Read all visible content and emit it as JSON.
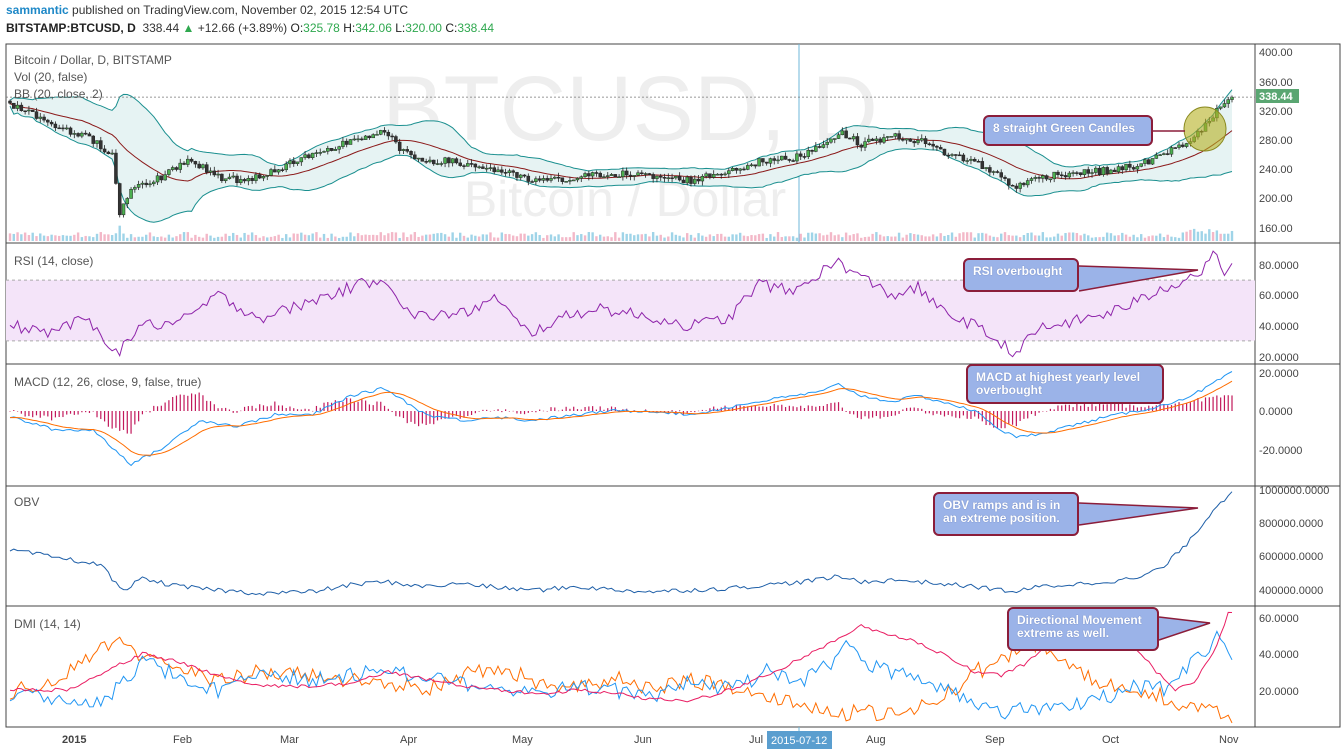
{
  "header": {
    "author": "sammantic",
    "published": " published on TradingView.com, November 02, 2015 12:54 UTC",
    "symbol": "BITSTAMP:BTCUSD, D",
    "last": "338.44",
    "change": "+12.66 (+3.89%)",
    "open_label": "O:",
    "open": "325.78",
    "high_label": "H:",
    "high": "342.06",
    "low_label": "L:",
    "low": "320.00",
    "close_label": "C:",
    "close": "338.44"
  },
  "watermark": {
    "line1": "BTCUSD, D",
    "line2": "Bitcoin / Dollar"
  },
  "colors": {
    "up": "#4caf50",
    "down": "#333333",
    "bb": "#1a8f8f",
    "basis": "#8b1a1a",
    "rsi": "#8e24aa",
    "macd": "#2196f3",
    "signal": "#ff6d00",
    "hist": "#c2185b",
    "obv": "#1e5fa8",
    "dmi_plus": "#2196f3",
    "dmi_minus": "#ff6d00",
    "adx": "#e91e63",
    "note_bg": "#9bb3e8",
    "note_border": "#8b1d3a",
    "highlight": "#b5b022"
  },
  "panes": {
    "price": {
      "labels": [
        "Bitcoin / Dollar, D, BITSTAMP",
        "Vol (20, false)",
        "BB (20, close, 2)"
      ],
      "ticks": [
        "400.00",
        "360.00",
        "320.00",
        "280.00",
        "240.00",
        "200.00",
        "160.00"
      ],
      "last_badge": "338.44"
    },
    "rsi": {
      "label": "RSI (14, close)",
      "ticks": [
        "80.0000",
        "60.0000",
        "40.0000",
        "20.0000"
      ]
    },
    "macd": {
      "label": "MACD (12, 26, close, 9, false, true)",
      "ticks": [
        "20.0000",
        "0.0000",
        "-20.0000"
      ]
    },
    "obv": {
      "label": "OBV",
      "ticks": [
        "1000000.0000",
        "800000.0000",
        "600000.0000",
        "400000.0000"
      ]
    },
    "dmi": {
      "label": "DMI (14, 14)",
      "ticks": [
        "60.0000",
        "40.0000",
        "20.0000"
      ]
    }
  },
  "time_axis": {
    "labels": [
      "2015",
      "Feb",
      "Mar",
      "Apr",
      "May",
      "Jun",
      "Jul",
      "Aug",
      "Sep",
      "Oct",
      "Nov"
    ],
    "cursor_label": "2015-07-12"
  },
  "notes": {
    "candles": "8 straight Green Candles",
    "rsi": "RSI overbought",
    "macd": "MACD at highest yearly level overbought",
    "obv": "OBV ramps and is in an extreme position.",
    "dmi": "Directional Movement extreme as well."
  },
  "chart_data": {
    "type": "line",
    "title": "Bitcoin / Dollar, D, BITSTAMP",
    "x": [
      "2015",
      "Feb",
      "Mar",
      "Apr",
      "May",
      "Jun",
      "Jul",
      "Aug",
      "Sep",
      "Oct",
      "Nov"
    ],
    "series": [
      {
        "name": "Bitcoin / Dollar, D, BITSTAMP",
        "values": [
          315,
          225,
          255,
          275,
          240,
          225,
          235,
          280,
          230,
          240,
          338
        ]
      },
      {
        "name": "RSI (14, close)",
        "values": [
          40,
          45,
          65,
          45,
          40,
          40,
          70,
          58,
          25,
          55,
          80
        ]
      },
      {
        "name": "MACD (12, 26, close, 9, false, true)",
        "values": [
          -5,
          -15,
          10,
          -10,
          -5,
          0,
          10,
          5,
          -15,
          0,
          20
        ]
      },
      {
        "name": "OBV",
        "values": [
          600000,
          420000,
          380000,
          430000,
          400000,
          400000,
          470000,
          450000,
          400000,
          500000,
          980000
        ]
      },
      {
        "name": "DMI (14, 14)",
        "values": [
          20,
          30,
          25,
          28,
          25,
          22,
          50,
          40,
          50,
          25,
          60
        ]
      }
    ],
    "ylim": {
      "price": [
        150,
        410
      ],
      "rsi": [
        15,
        95
      ],
      "macd": [
        -35,
        25
      ],
      "obv": [
        300000,
        1020000
      ],
      "dmi": [
        0,
        65
      ]
    },
    "grid": false
  }
}
